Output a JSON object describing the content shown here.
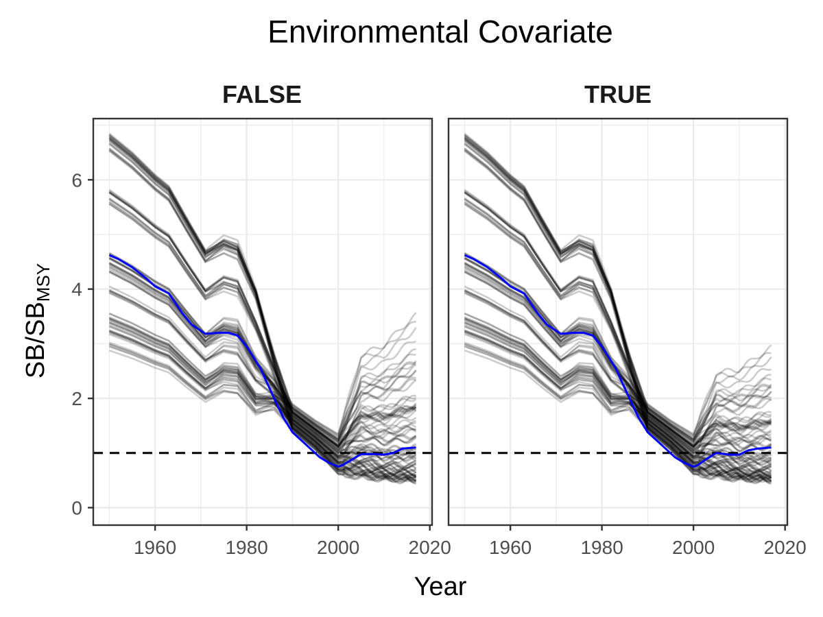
{
  "chart_data": {
    "type": "line",
    "title": "Environmental Covariate",
    "xlabel": "Year",
    "ylabel": {
      "main": "SB/SB",
      "subscript": "MSY"
    },
    "xlim": [
      1946.5,
      2020.5
    ],
    "ylim": [
      -0.32,
      7.12
    ],
    "x_ticks": [
      1960,
      1980,
      2000,
      2020
    ],
    "y_ticks": [
      0,
      2,
      4,
      6
    ],
    "grid": true,
    "reference_line": {
      "y": 1,
      "style": "dashed",
      "color": "#000000"
    },
    "colors": {
      "ensemble": "#000000",
      "median": "#0000ff",
      "grid": "#ebebeb",
      "panel_border": "#333333"
    },
    "ensemble": {
      "count": 90,
      "anchor_years": [
        1950,
        1955,
        1960,
        1963,
        1967,
        1971,
        1975,
        1978,
        1982,
        1986,
        1990,
        1995,
        2000,
        2005,
        2010,
        2014,
        2017
      ],
      "start_values": [
        6.8,
        6.7,
        6.6,
        5.75,
        5.6,
        4.6,
        4.5,
        4.35,
        4.0,
        3.5,
        3.35,
        3.2,
        2.95
      ]
    },
    "panels": [
      {
        "strip": "FALSE",
        "median_series": {
          "x": [
            1950,
            1952,
            1955,
            1958,
            1960,
            1963,
            1966,
            1968,
            1971,
            1974,
            1976,
            1978,
            1980,
            1983,
            1986,
            1988,
            1990,
            1993,
            1996,
            1998,
            2000,
            2001,
            2003,
            2005,
            2008,
            2010,
            2012,
            2014,
            2017
          ],
          "y": [
            4.62,
            4.55,
            4.4,
            4.2,
            4.05,
            3.92,
            3.55,
            3.35,
            3.18,
            3.2,
            3.2,
            3.15,
            2.95,
            2.55,
            2.0,
            1.65,
            1.38,
            1.15,
            0.92,
            0.82,
            0.75,
            0.78,
            0.88,
            0.98,
            0.98,
            0.97,
            1.0,
            1.08,
            1.1
          ]
        },
        "ensemble_max_y_2017": 3.55
      },
      {
        "strip": "TRUE",
        "median_series": {
          "x": [
            1950,
            1952,
            1955,
            1958,
            1960,
            1963,
            1966,
            1968,
            1971,
            1974,
            1976,
            1978,
            1980,
            1983,
            1986,
            1988,
            1990,
            1993,
            1996,
            1998,
            2000,
            2001,
            2003,
            2005,
            2008,
            2010,
            2012,
            2014,
            2017
          ],
          "y": [
            4.62,
            4.55,
            4.4,
            4.2,
            4.05,
            3.92,
            3.55,
            3.35,
            3.18,
            3.2,
            3.2,
            3.15,
            2.95,
            2.55,
            2.0,
            1.65,
            1.38,
            1.15,
            0.92,
            0.82,
            0.75,
            0.78,
            0.9,
            1.0,
            0.97,
            0.97,
            1.05,
            1.08,
            1.1
          ]
        },
        "ensemble_max_y_2017": 2.95
      }
    ]
  }
}
